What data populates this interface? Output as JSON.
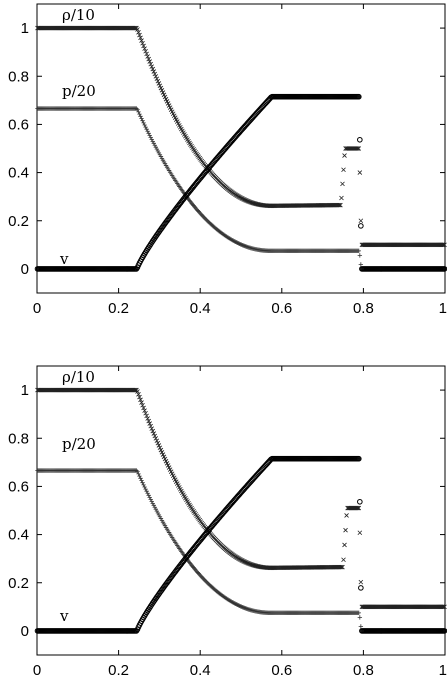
{
  "chart_data": [
    {
      "type": "scatter",
      "xlim": [
        0,
        1
      ],
      "ylim": [
        -0.1,
        1.1
      ],
      "xticks": [
        "0",
        "0.2",
        "0.4",
        "0.6",
        "0.8",
        "1"
      ],
      "yticks": [
        "0",
        "0.2",
        "0.4",
        "0.6",
        "0.8",
        "1"
      ],
      "grid": false,
      "series": [
        {
          "name": "ρ/10",
          "marker": "x",
          "rarefaction": {
            "x_start": 0.245,
            "x_end": 0.575,
            "y_start": 1.0,
            "y_end": 0.262
          },
          "points": [
            [
              0.0,
              1.0
            ],
            [
              0.245,
              1.0
            ],
            [
              0.575,
              0.262
            ],
            [
              0.745,
              0.265
            ],
            [
              0.755,
              0.5
            ],
            [
              0.79,
              0.5
            ],
            [
              0.795,
              0.1
            ],
            [
              1.0,
              0.1
            ]
          ]
        },
        {
          "name": "p/20",
          "marker": "+",
          "rarefaction": {
            "x_start": 0.245,
            "x_end": 0.575,
            "y_start": 0.666,
            "y_end": 0.075
          },
          "points": [
            [
              0.0,
              0.666
            ],
            [
              0.245,
              0.666
            ],
            [
              0.575,
              0.075
            ],
            [
              0.79,
              0.075
            ],
            [
              0.795,
              0.0
            ],
            [
              1.0,
              0.0
            ]
          ]
        },
        {
          "name": "v",
          "marker": "o",
          "rarefaction": {
            "x_start": 0.245,
            "x_end": 0.575,
            "y_start": 0.0,
            "y_end": 0.715
          },
          "points": [
            [
              0.0,
              0.0
            ],
            [
              0.245,
              0.0
            ],
            [
              0.575,
              0.715
            ],
            [
              0.79,
              0.715
            ],
            [
              0.795,
              0.0
            ],
            [
              1.0,
              0.0
            ]
          ]
        }
      ]
    },
    {
      "type": "scatter",
      "xlim": [
        0,
        1
      ],
      "ylim": [
        -0.1,
        1.1
      ],
      "xticks": [
        "0",
        "0.2",
        "0.4",
        "0.6",
        "0.8",
        "1"
      ],
      "yticks": [
        "0",
        "0.2",
        "0.4",
        "0.6",
        "0.8",
        "1"
      ],
      "grid": false,
      "series": [
        {
          "name": "ρ/10",
          "marker": "x",
          "rarefaction": {
            "x_start": 0.245,
            "x_end": 0.575,
            "y_start": 1.0,
            "y_end": 0.262
          },
          "points": [
            [
              0.0,
              1.0
            ],
            [
              0.245,
              1.0
            ],
            [
              0.575,
              0.262
            ],
            [
              0.75,
              0.265
            ],
            [
              0.76,
              0.51
            ],
            [
              0.79,
              0.51
            ],
            [
              0.795,
              0.1
            ],
            [
              1.0,
              0.1
            ]
          ]
        },
        {
          "name": "p/20",
          "marker": "+",
          "rarefaction": {
            "x_start": 0.245,
            "x_end": 0.575,
            "y_start": 0.666,
            "y_end": 0.075
          },
          "points": [
            [
              0.0,
              0.666
            ],
            [
              0.245,
              0.666
            ],
            [
              0.575,
              0.075
            ],
            [
              0.79,
              0.075
            ],
            [
              0.795,
              0.0
            ],
            [
              1.0,
              0.0
            ]
          ]
        },
        {
          "name": "v",
          "marker": "o",
          "rarefaction": {
            "x_start": 0.245,
            "x_end": 0.575,
            "y_start": 0.0,
            "y_end": 0.715
          },
          "points": [
            [
              0.0,
              0.0
            ],
            [
              0.245,
              0.0
            ],
            [
              0.575,
              0.715
            ],
            [
              0.79,
              0.715
            ],
            [
              0.795,
              0.0
            ],
            [
              1.0,
              0.0
            ]
          ]
        }
      ]
    }
  ],
  "labels": {
    "top": {
      "rho": "ρ/10",
      "p": "p/20",
      "v": "v"
    },
    "bottom": {
      "rho": "ρ/10",
      "p": "p/20",
      "v": "v"
    }
  }
}
